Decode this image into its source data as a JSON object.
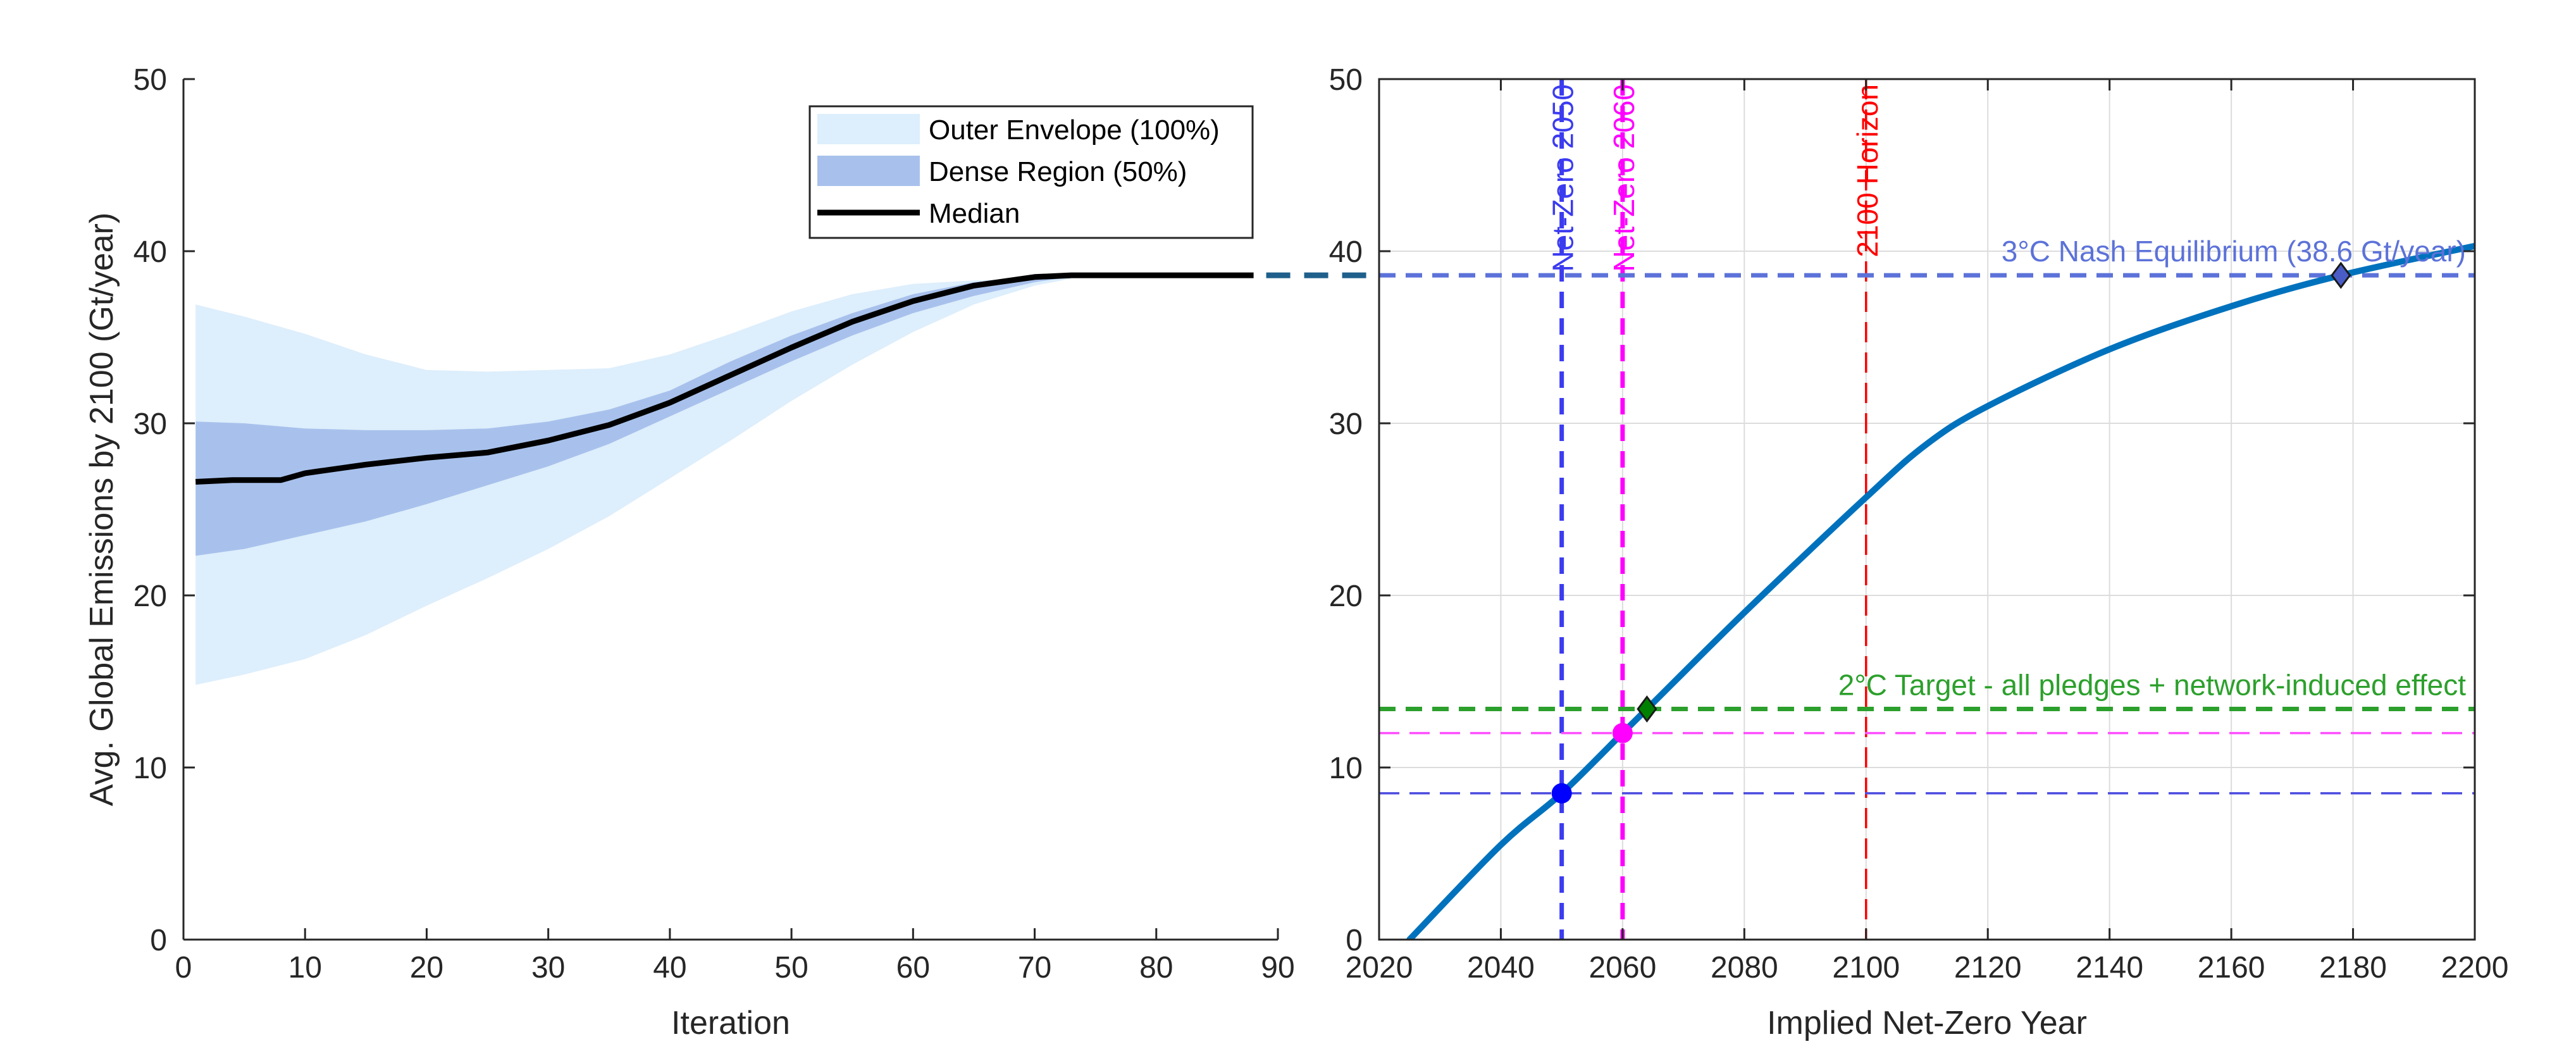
{
  "chart_data": [
    {
      "type": "area",
      "xlabel": "Iteration",
      "ylabel": "Avg. Global Emissions by 2100 (Gt/year)",
      "xlim": [
        0,
        90
      ],
      "ylim": [
        0,
        50
      ],
      "xticks": [
        0,
        10,
        20,
        30,
        40,
        50,
        60,
        70,
        80,
        90
      ],
      "yticks": [
        0,
        10,
        20,
        30,
        40,
        50
      ],
      "grid": false,
      "legend_position": "top-right",
      "series": [
        {
          "name": "Outer Envelope (100%)",
          "color": "#ddeefc",
          "x": [
            1,
            5,
            10,
            15,
            20,
            25,
            30,
            35,
            40,
            45,
            50,
            55,
            60,
            65,
            70,
            73
          ],
          "lower": [
            14.8,
            15.4,
            16.3,
            17.7,
            19.4,
            21.0,
            22.7,
            24.6,
            26.8,
            29.0,
            31.3,
            33.4,
            35.3,
            36.9,
            38.0,
            38.4
          ],
          "upper": [
            36.9,
            36.2,
            35.2,
            34.0,
            33.1,
            33.0,
            33.1,
            33.2,
            34.0,
            35.2,
            36.5,
            37.5,
            38.1,
            38.3,
            38.4,
            38.5
          ]
        },
        {
          "name": "Dense Region (50%)",
          "color": "#a8c1ec",
          "x": [
            1,
            5,
            10,
            15,
            20,
            25,
            30,
            35,
            40,
            45,
            50,
            55,
            60,
            65,
            70,
            73
          ],
          "lower": [
            22.3,
            22.7,
            23.5,
            24.3,
            25.3,
            26.4,
            27.5,
            28.8,
            30.4,
            32.0,
            33.6,
            35.1,
            36.4,
            37.4,
            38.2,
            38.5
          ],
          "upper": [
            30.1,
            30.0,
            29.7,
            29.6,
            29.6,
            29.7,
            30.1,
            30.8,
            31.9,
            33.6,
            35.1,
            36.4,
            37.5,
            38.2,
            38.5,
            38.6
          ]
        },
        {
          "name": "Median",
          "color": "#000000",
          "x": [
            1,
            4,
            8,
            10,
            15,
            20,
            25,
            30,
            35,
            40,
            45,
            50,
            55,
            60,
            65,
            70,
            73,
            80,
            88
          ],
          "y": [
            26.6,
            26.7,
            26.7,
            27.1,
            27.6,
            28.0,
            28.3,
            29.0,
            29.9,
            31.2,
            32.8,
            34.4,
            35.9,
            37.1,
            38.0,
            38.5,
            38.6,
            38.6,
            38.6
          ]
        }
      ]
    },
    {
      "type": "line",
      "xlabel": "Implied Net-Zero Year",
      "ylabel": "",
      "xlim": [
        2020,
        2200
      ],
      "ylim": [
        0,
        50
      ],
      "xticks": [
        2020,
        2040,
        2060,
        2080,
        2100,
        2120,
        2140,
        2160,
        2180,
        2200
      ],
      "yticks": [
        0,
        10,
        20,
        30,
        40,
        50
      ],
      "grid": true,
      "series": [
        {
          "name": "",
          "color": "#0072bd",
          "x": [
            2025,
            2040,
            2050,
            2060,
            2064,
            2080,
            2100,
            2110,
            2120,
            2140,
            2160,
            2178,
            2200
          ],
          "y": [
            0,
            5.5,
            8.5,
            12.0,
            13.4,
            19.0,
            25.7,
            28.8,
            31.0,
            34.3,
            36.8,
            38.6,
            40.3
          ]
        }
      ],
      "reference_lines": [
        {
          "orientation": "vertical",
          "value": 2050,
          "label": "Net-Zero 2050",
          "color": "#3b3bf0",
          "dash": "bold"
        },
        {
          "orientation": "vertical",
          "value": 2060,
          "label": "Net-Zero 2060",
          "color": "#ff00ff",
          "dash": "bold"
        },
        {
          "orientation": "vertical",
          "value": 2100,
          "label": "2100 Horizon",
          "color": "#ff0000",
          "dash": "thin"
        },
        {
          "orientation": "horizontal",
          "value": 38.6,
          "label": "3°C Nash Equilibrium (38.6 Gt/year)",
          "color": "#5c72d9",
          "dash": "bold"
        },
        {
          "orientation": "horizontal",
          "value": 13.4,
          "label": "2°C Target - all pledges + network-induced effect",
          "color": "#2ca02c",
          "dash": "bold"
        },
        {
          "orientation": "horizontal",
          "value": 12.0,
          "label": "",
          "color": "#ff4dff",
          "dash": "thin"
        },
        {
          "orientation": "horizontal",
          "value": 8.5,
          "label": "",
          "color": "#4d4de0",
          "dash": "thin"
        }
      ],
      "markers": [
        {
          "x": 2050,
          "y": 8.5,
          "shape": "circle",
          "color": "#0000ff"
        },
        {
          "x": 2060,
          "y": 12.0,
          "shape": "circle",
          "color": "#ff00ff"
        },
        {
          "x": 2064,
          "y": 13.4,
          "shape": "diamond",
          "color": "#008000"
        },
        {
          "x": 2178,
          "y": 38.6,
          "shape": "diamond",
          "color": "#4a5dc7"
        }
      ]
    }
  ]
}
